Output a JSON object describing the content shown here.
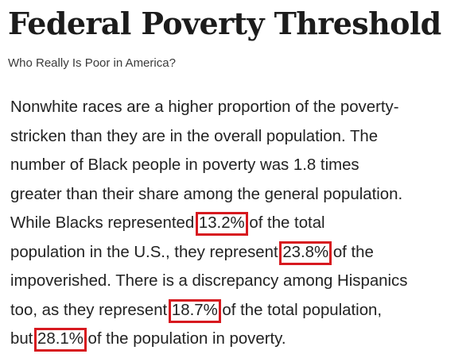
{
  "article": {
    "title": "Federal Poverty Threshold",
    "subtitle": "Who Really Is Poor in America?",
    "body": {
      "line1": "Nonwhite races are a higher proportion of the poverty-",
      "line2": "stricken than they are in the overall population. The",
      "line3": "number of Black people in poverty was 1.8 times",
      "line4": "greater than their share among the general population.",
      "line5_before": "While Blacks represented ",
      "line5_highlight": "13.2%",
      "line5_after": " of the total",
      "line6_before": "population in the U.S., they represent ",
      "line6_highlight": "23.8%",
      "line6_after": " of the",
      "line7": "impoverished. There is a discrepancy among Hispanics",
      "line8_before": "too, as they represent ",
      "line8_highlight": "18.7%",
      "line8_after": " of the total population,",
      "line9_before": "but ",
      "line9_highlight": "28.1%",
      "line9_after": " of the population in poverty."
    }
  },
  "colors": {
    "highlight_border": "#d7191f"
  }
}
